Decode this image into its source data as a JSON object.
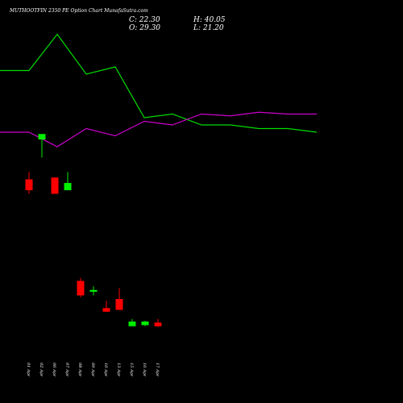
{
  "chart_data": {
    "type": "candlestick",
    "title": "MUTHOOTFIN 2350 PE Option Chart MunafaSutra.com",
    "ohlc": {
      "close": "C: 22.30",
      "open": "O: 29.30",
      "high": "H: 40.05",
      "low": "L: 21.20"
    },
    "x_labels": [
      "01 Apr",
      "02 Apr",
      "06 Apr",
      "07 Apr",
      "08 Apr",
      "09 Apr",
      "10 Apr",
      "13 Apr",
      "15 Apr",
      "16 Apr",
      "17 Apr"
    ],
    "ylim": [
      15,
      115
    ],
    "candles": [
      {
        "date": "01 Apr",
        "open": 70.0,
        "high": 72.0,
        "low": 66.0,
        "close": 67.0
      },
      {
        "date": "02 Apr",
        "open": 81.0,
        "high": 82.5,
        "low": 76.0,
        "close": 82.5
      },
      {
        "date": "06 Apr",
        "open": 70.5,
        "high": 70.5,
        "low": 66.0,
        "close": 66.0
      },
      {
        "date": "07 Apr",
        "open": 67.0,
        "high": 72.0,
        "low": 67.0,
        "close": 69.0
      },
      {
        "date": "08 Apr",
        "open": 42.0,
        "high": 42.8,
        "low": 37.5,
        "close": 38.0
      },
      {
        "date": "09 Apr",
        "open": 39.0,
        "high": 40.5,
        "low": 38.0,
        "close": 39.5
      },
      {
        "date": "10 Apr",
        "open": 34.5,
        "high": 36.5,
        "low": 33.5,
        "close": 33.5
      },
      {
        "date": "13 Apr",
        "open": 37.0,
        "high": 40.0,
        "low": 34.0,
        "close": 34.0
      },
      {
        "date": "15 Apr",
        "open": 29.5,
        "high": 31.5,
        "low": 29.5,
        "close": 30.8
      },
      {
        "date": "16 Apr",
        "open": 29.8,
        "high": 31.0,
        "low": 29.5,
        "close": 30.8
      },
      {
        "date": "17 Apr",
        "open": 30.5,
        "high": 31.5,
        "low": 29.3,
        "close": 29.5
      }
    ],
    "series": [
      {
        "values": [
          100,
          100,
          110,
          99,
          101,
          87,
          88,
          85,
          85,
          84,
          84,
          83
        ],
        "color": "#00dd00"
      },
      {
        "values": [
          83,
          83,
          79,
          84,
          82,
          86,
          85,
          88,
          87.5,
          88.5,
          88,
          88
        ],
        "color": "#cc00cc"
      }
    ],
    "colors": {
      "up": "#00ee00",
      "down": "#ff0000",
      "background": "#000000"
    }
  }
}
